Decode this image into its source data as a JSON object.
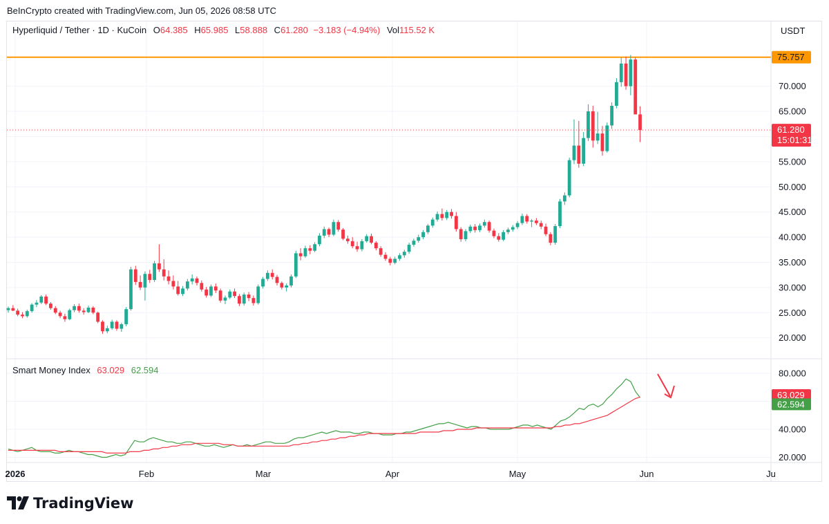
{
  "header": {
    "credit": "BeInCrypto created with TradingView.com, Jun 05, 2026 08:58 UTC"
  },
  "legend": {
    "symbol": "Hyperliquid / Tether · 1D · KuCoin",
    "o_label": "O",
    "o_value": "64.385",
    "h_label": "H",
    "h_value": "65.985",
    "l_label": "L",
    "l_value": "58.888",
    "c_label": "C",
    "c_value": "61.280",
    "change": "−3.183 (−4.94%)",
    "vol_label": "Vol",
    "vol_value": "115.52 K"
  },
  "currency": "USDT",
  "indicator": {
    "name": "Smart Money Index",
    "value1": "63.029",
    "value2": "62.594"
  },
  "logo": {
    "text": "TradingView"
  },
  "colors": {
    "up": "#22ab94",
    "down": "#f23645",
    "resistance": "#ff9800",
    "smi_line": "#43a047",
    "smi_signal": "#f23645",
    "grid": "#f0f3fa"
  },
  "chart_data": [
    {
      "type": "candlestick",
      "title": "Hyperliquid / Tether · 1D · KuCoin",
      "ylabel": "USDT",
      "ylim": [
        16,
        77
      ],
      "yticks": [
        "20.000",
        "25.000",
        "30.000",
        "35.000",
        "40.000",
        "45.000",
        "50.000",
        "55.000",
        "60.000",
        "65.000",
        "70.000"
      ],
      "xticks": [
        "2026",
        "Feb",
        "Mar",
        "Apr",
        "May",
        "Jun",
        "Ju"
      ],
      "resistance": {
        "value": 75.757,
        "label": "75.757"
      },
      "last_price": {
        "value": 61.28,
        "label": "61.280",
        "countdown": "15:01:31"
      },
      "candles": [
        [
          25.5,
          26.2,
          25.0,
          25.9
        ],
        [
          25.9,
          26.5,
          25.3,
          25.4
        ],
        [
          25.4,
          25.8,
          24.3,
          24.6
        ],
        [
          24.6,
          25.1,
          23.9,
          24.3
        ],
        [
          24.3,
          25.6,
          24.0,
          25.3
        ],
        [
          25.3,
          26.9,
          25.0,
          26.6
        ],
        [
          26.6,
          27.5,
          26.1,
          27.0
        ],
        [
          27.0,
          28.5,
          26.7,
          28.2
        ],
        [
          28.2,
          28.6,
          26.5,
          26.8
        ],
        [
          26.8,
          27.1,
          25.6,
          25.9
        ],
        [
          25.9,
          26.3,
          24.7,
          25.0
        ],
        [
          25.0,
          25.4,
          23.9,
          24.3
        ],
        [
          24.3,
          24.8,
          23.2,
          23.7
        ],
        [
          23.7,
          25.8,
          23.5,
          25.5
        ],
        [
          25.5,
          26.7,
          25.1,
          26.3
        ],
        [
          26.3,
          26.8,
          25.0,
          25.4
        ],
        [
          25.4,
          25.9,
          24.6,
          25.1
        ],
        [
          25.1,
          26.4,
          24.9,
          26.0
        ],
        [
          26.0,
          26.3,
          24.7,
          25.0
        ],
        [
          25.0,
          25.2,
          22.9,
          23.2
        ],
        [
          23.2,
          23.5,
          20.8,
          21.3
        ],
        [
          21.3,
          22.4,
          20.9,
          21.9
        ],
        [
          21.9,
          23.6,
          21.6,
          23.2
        ],
        [
          23.2,
          23.5,
          21.4,
          21.8
        ],
        [
          21.8,
          23.0,
          21.2,
          22.7
        ],
        [
          22.7,
          26.1,
          22.3,
          25.7
        ],
        [
          25.7,
          34.1,
          25.4,
          33.6
        ],
        [
          33.6,
          34.3,
          30.5,
          31.1
        ],
        [
          31.1,
          32.4,
          29.5,
          30.0
        ],
        [
          30.0,
          33.2,
          27.4,
          32.7
        ],
        [
          32.7,
          33.5,
          30.9,
          31.5
        ],
        [
          31.5,
          35.3,
          31.1,
          34.8
        ],
        [
          34.8,
          38.6,
          33.1,
          33.6
        ],
        [
          33.6,
          35.6,
          31.4,
          32.2
        ],
        [
          32.2,
          33.4,
          30.6,
          31.3
        ],
        [
          31.3,
          32.4,
          29.6,
          30.2
        ],
        [
          30.2,
          31.3,
          28.4,
          28.7
        ],
        [
          28.7,
          30.3,
          28.3,
          29.8
        ],
        [
          29.8,
          31.7,
          29.4,
          31.2
        ],
        [
          31.2,
          32.6,
          30.6,
          31.8
        ],
        [
          31.8,
          32.2,
          30.4,
          30.9
        ],
        [
          30.9,
          31.4,
          29.2,
          29.6
        ],
        [
          29.6,
          30.1,
          28.0,
          28.4
        ],
        [
          28.4,
          30.6,
          28.1,
          30.2
        ],
        [
          30.2,
          30.8,
          28.9,
          29.4
        ],
        [
          29.4,
          29.8,
          27.0,
          27.4
        ],
        [
          27.4,
          28.4,
          26.7,
          28.0
        ],
        [
          28.0,
          29.6,
          27.7,
          29.2
        ],
        [
          29.2,
          29.8,
          27.9,
          28.3
        ],
        [
          28.3,
          28.7,
          26.3,
          26.8
        ],
        [
          26.8,
          29.0,
          26.4,
          28.6
        ],
        [
          28.6,
          29.1,
          27.3,
          27.9
        ],
        [
          27.9,
          28.4,
          26.4,
          26.9
        ],
        [
          26.9,
          30.6,
          26.6,
          30.2
        ],
        [
          30.2,
          32.1,
          29.8,
          31.7
        ],
        [
          31.7,
          33.4,
          31.3,
          32.9
        ],
        [
          32.9,
          33.6,
          31.6,
          32.1
        ],
        [
          32.1,
          32.5,
          30.4,
          30.9
        ],
        [
          30.9,
          31.2,
          29.6,
          30.0
        ],
        [
          30.0,
          30.8,
          29.2,
          30.4
        ],
        [
          30.4,
          32.6,
          30.0,
          32.2
        ],
        [
          32.2,
          37.3,
          31.9,
          36.8
        ],
        [
          36.8,
          37.8,
          35.4,
          36.2
        ],
        [
          36.2,
          38.3,
          35.9,
          37.8
        ],
        [
          37.8,
          38.4,
          36.6,
          37.3
        ],
        [
          37.3,
          39.0,
          37.0,
          38.6
        ],
        [
          38.6,
          40.8,
          38.2,
          40.3
        ],
        [
          40.3,
          42.1,
          39.8,
          41.6
        ],
        [
          41.6,
          41.9,
          40.0,
          40.5
        ],
        [
          40.5,
          43.5,
          40.2,
          43.0
        ],
        [
          43.0,
          43.4,
          41.1,
          41.5
        ],
        [
          41.5,
          41.8,
          39.4,
          39.7
        ],
        [
          39.7,
          40.3,
          38.7,
          39.2
        ],
        [
          39.2,
          40.0,
          37.8,
          38.2
        ],
        [
          38.2,
          39.1,
          37.1,
          37.6
        ],
        [
          37.6,
          39.6,
          37.2,
          39.2
        ],
        [
          39.2,
          40.6,
          38.9,
          40.2
        ],
        [
          40.2,
          40.7,
          38.6,
          38.9
        ],
        [
          38.9,
          39.2,
          37.4,
          37.8
        ],
        [
          37.8,
          38.2,
          36.1,
          36.5
        ],
        [
          36.5,
          37.0,
          35.3,
          35.7
        ],
        [
          35.7,
          36.1,
          34.4,
          34.9
        ],
        [
          34.9,
          36.1,
          34.6,
          35.7
        ],
        [
          35.7,
          36.8,
          35.3,
          36.4
        ],
        [
          36.4,
          37.5,
          35.9,
          37.1
        ],
        [
          37.1,
          38.9,
          36.7,
          38.5
        ],
        [
          38.5,
          39.7,
          38.1,
          39.3
        ],
        [
          39.3,
          40.5,
          38.9,
          40.0
        ],
        [
          40.0,
          41.4,
          39.6,
          41.0
        ],
        [
          41.0,
          42.6,
          40.6,
          42.3
        ],
        [
          42.3,
          43.9,
          41.9,
          43.5
        ],
        [
          43.5,
          45.1,
          43.1,
          44.6
        ],
        [
          44.6,
          45.7,
          43.3,
          43.8
        ],
        [
          43.8,
          45.4,
          43.4,
          45.0
        ],
        [
          45.0,
          45.6,
          43.7,
          44.2
        ],
        [
          44.2,
          45.0,
          41.1,
          41.6
        ],
        [
          41.6,
          42.0,
          39.1,
          39.6
        ],
        [
          39.6,
          41.6,
          39.2,
          41.2
        ],
        [
          41.2,
          42.5,
          40.8,
          42.1
        ],
        [
          42.1,
          42.6,
          40.9,
          41.4
        ],
        [
          41.4,
          42.7,
          41.0,
          42.3
        ],
        [
          42.3,
          43.5,
          41.9,
          43.0
        ],
        [
          43.0,
          43.3,
          40.9,
          41.3
        ],
        [
          41.3,
          41.7,
          39.8,
          40.2
        ],
        [
          40.2,
          40.8,
          39.1,
          39.5
        ],
        [
          39.5,
          41.4,
          39.2,
          41.0
        ],
        [
          41.0,
          41.9,
          40.6,
          41.5
        ],
        [
          41.5,
          42.4,
          41.1,
          42.0
        ],
        [
          42.0,
          43.2,
          41.6,
          42.8
        ],
        [
          42.8,
          44.7,
          42.4,
          44.2
        ],
        [
          44.2,
          44.6,
          42.7,
          43.1
        ],
        [
          43.1,
          43.6,
          42.0,
          43.3
        ],
        [
          43.3,
          43.8,
          42.4,
          42.8
        ],
        [
          42.8,
          43.3,
          41.6,
          42.1
        ],
        [
          42.1,
          42.7,
          40.2,
          40.6
        ],
        [
          40.6,
          41.0,
          38.4,
          38.9
        ],
        [
          38.9,
          42.6,
          38.5,
          42.2
        ],
        [
          42.2,
          47.6,
          41.8,
          47.1
        ],
        [
          47.1,
          48.9,
          46.4,
          48.3
        ],
        [
          48.3,
          55.8,
          47.9,
          55.3
        ],
        [
          55.3,
          63.4,
          54.5,
          58.2
        ],
        [
          58.2,
          63.1,
          53.8,
          54.6
        ],
        [
          54.6,
          60.9,
          54.1,
          59.7
        ],
        [
          59.7,
          66.4,
          59.1,
          65.0
        ],
        [
          65.0,
          66.1,
          57.8,
          59.2
        ],
        [
          59.2,
          64.9,
          58.5,
          60.6
        ],
        [
          60.6,
          62.1,
          56.2,
          57.1
        ],
        [
          57.1,
          62.8,
          56.8,
          62.2
        ],
        [
          62.2,
          66.8,
          61.5,
          66.1
        ],
        [
          66.1,
          71.6,
          65.6,
          70.8
        ],
        [
          70.8,
          75.7,
          69.9,
          74.5
        ],
        [
          74.5,
          75.9,
          69.3,
          70.0
        ],
        [
          70.0,
          76.2,
          68.2,
          75.3
        ],
        [
          75.3,
          75.7,
          64.4,
          64.4
        ],
        [
          64.4,
          65.985,
          58.888,
          61.28
        ]
      ]
    },
    {
      "type": "line",
      "title": "Smart Money Index",
      "ylim": [
        16,
        85
      ],
      "yticks": [
        "20.000",
        "40.000",
        "60.000",
        "80.000"
      ],
      "series": [
        {
          "color": "#43a047",
          "last_label": "62.594",
          "values": [
            26,
            25,
            24,
            25,
            26,
            27,
            25,
            24,
            24,
            24,
            23,
            23,
            24,
            25,
            24,
            24,
            23,
            22,
            22,
            21,
            20,
            20,
            21,
            22,
            21,
            22,
            27,
            32,
            31,
            31,
            33,
            34,
            33,
            32,
            31,
            31,
            30,
            30,
            31,
            31,
            30,
            29,
            28,
            28,
            29,
            28,
            27,
            28,
            29,
            28,
            28,
            29,
            28,
            29,
            30,
            31,
            31,
            30,
            30,
            30,
            31,
            33,
            34,
            34,
            35,
            36,
            37,
            38,
            37,
            38,
            39,
            38,
            38,
            38,
            37,
            37,
            38,
            38,
            37,
            37,
            36,
            36,
            36,
            37,
            37,
            38,
            38,
            39,
            40,
            41,
            42,
            43,
            44,
            44,
            45,
            44,
            43,
            42,
            41,
            42,
            42,
            41,
            41,
            40,
            40,
            40,
            40,
            40,
            41,
            42,
            43,
            43,
            42,
            43,
            42,
            41,
            40,
            43,
            46,
            47,
            49,
            52,
            55,
            54,
            57,
            58,
            56,
            58,
            62,
            65,
            69,
            72,
            76,
            74,
            67,
            62.594
          ]
        },
        {
          "color": "#f23645",
          "last_label": "63.029",
          "values": [
            25,
            25,
            25,
            25,
            25,
            25,
            25,
            25,
            25,
            25,
            25,
            24,
            24,
            24,
            24,
            24,
            24,
            24,
            24,
            24,
            24,
            23,
            23,
            23,
            23,
            23,
            24,
            24,
            24,
            25,
            25,
            26,
            26,
            27,
            27,
            28,
            28,
            29,
            29,
            29,
            30,
            30,
            30,
            30,
            30,
            30,
            29,
            29,
            29,
            28,
            28,
            28,
            28,
            28,
            28,
            28,
            28,
            28,
            28,
            28,
            28,
            29,
            29,
            30,
            30,
            31,
            31,
            32,
            32,
            33,
            33,
            34,
            34,
            35,
            35,
            36,
            36,
            37,
            37,
            37,
            37,
            37,
            37,
            37,
            37,
            37,
            37,
            37,
            38,
            38,
            38,
            38,
            38,
            39,
            39,
            39,
            40,
            40,
            40,
            40,
            41,
            41,
            41,
            41,
            41,
            41,
            41,
            41,
            41,
            41,
            41,
            41,
            41,
            41,
            41,
            41,
            41,
            42,
            42,
            43,
            43,
            44,
            44,
            45,
            46,
            47,
            48,
            49,
            50,
            52,
            54,
            56,
            58,
            60,
            62,
            63.029
          ]
        }
      ]
    }
  ]
}
